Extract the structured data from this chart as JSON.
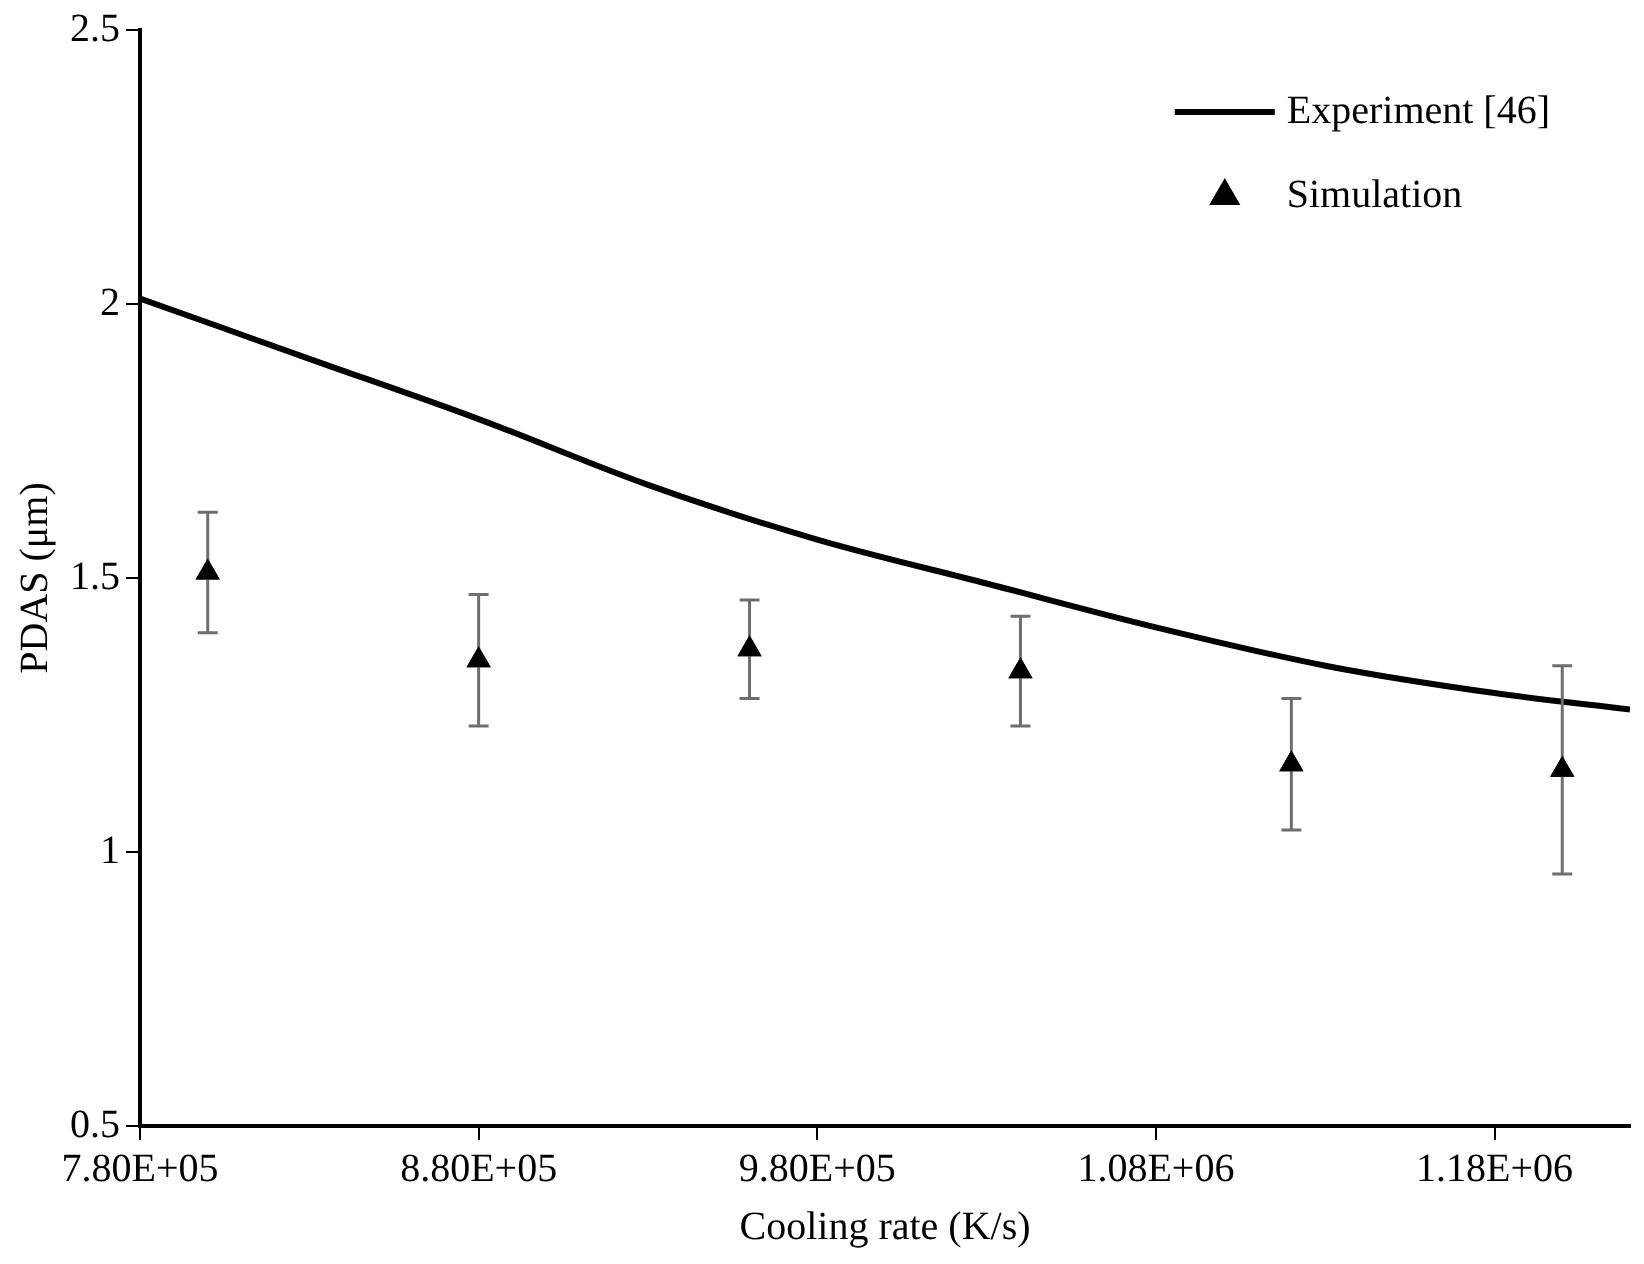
{
  "chart_data": {
    "type": "scatter",
    "xlabel": "Cooling rate (K/s)",
    "ylabel": "PDAS (μm)",
    "xlim": [
      780000,
      1220000
    ],
    "xticks": [
      {
        "value": 780000,
        "label": "7.80E+05"
      },
      {
        "value": 880000,
        "label": "8.80E+05"
      },
      {
        "value": 980000,
        "label": "9.80E+05"
      },
      {
        "value": 1080000,
        "label": "1.08E+06"
      },
      {
        "value": 1180000,
        "label": "1.18E+06"
      }
    ],
    "ylim": [
      0.5,
      2.5
    ],
    "yticks": [
      0.5,
      1,
      1.5,
      2,
      2.5
    ],
    "grid": false,
    "legend": "top right",
    "series": [
      {
        "name": "Experiment [46]",
        "type": "line",
        "color": "#000000",
        "marker": "none",
        "line_style": "solid",
        "x": [
          780000,
          830000,
          880000,
          930000,
          980000,
          1030000,
          1080000,
          1130000,
          1180000,
          1220000
        ],
        "values": [
          2.01,
          1.9,
          1.79,
          1.67,
          1.57,
          1.49,
          1.41,
          1.34,
          1.29,
          1.26
        ]
      },
      {
        "name": "Simulation",
        "color": "#000000",
        "marker": "triangle",
        "x": [
          800000,
          880000,
          960000,
          1040000,
          1120000,
          1200000
        ],
        "values": [
          1.51,
          1.35,
          1.37,
          1.33,
          1.16,
          1.15
        ],
        "errors": [
          0.11,
          0.12,
          0.09,
          0.1,
          0.12,
          0.19
        ]
      }
    ]
  }
}
